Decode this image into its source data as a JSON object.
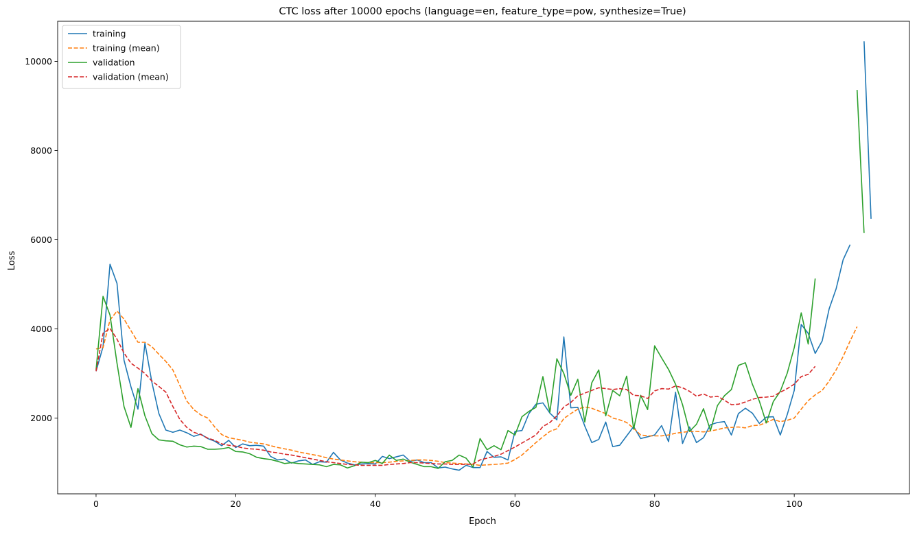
{
  "chart_data": {
    "type": "line",
    "title": "CTC loss after 10000 epochs (language=en, feature_type=pow, synthesize=True)",
    "xlabel": "Epoch",
    "ylabel": "Loss",
    "xlim": [
      -5.5,
      116.5
    ],
    "ylim": [
      300,
      10900
    ],
    "xticks": [
      0,
      20,
      40,
      60,
      80,
      100
    ],
    "yticks": [
      2000,
      4000,
      6000,
      8000,
      10000
    ],
    "grid": false,
    "legend_position": "top-left",
    "series": [
      {
        "name": "training",
        "color": "#1f77b4",
        "dash": "solid",
        "segments": [
          {
            "x0": 0,
            "values": [
              3050,
              3600,
              5450,
              5020,
              3300,
              2700,
              2200,
              3680,
              2800,
              2100,
              1730,
              1680,
              1730,
              1670,
              1590,
              1640,
              1540,
              1480,
              1380,
              1500,
              1340,
              1420,
              1380,
              1390,
              1370,
              1140,
              1060,
              1080,
              990,
              1040,
              1060,
              960,
              1020,
              1010,
              1230,
              1060,
              990,
              950,
              970,
              980,
              970,
              1140,
              1090,
              1130,
              1170,
              1030,
              1060,
              1000,
              1000,
              880,
              900,
              860,
              830,
              940,
              890,
              890,
              1250,
              1120,
              1130,
              1060,
              1700,
              1720,
              2100,
              2310,
              2340,
              2110,
              1960,
              3820,
              2230,
              2240,
              1820,
              1450,
              1520,
              1910,
              1360,
              1390,
              1600,
              1810,
              1540,
              1580,
              1620,
              1830,
              1470,
              2580,
              1430,
              1800,
              1450,
              1560,
              1850,
              1900,
              1920,
              1620,
              2100,
              2220,
              2110,
              1880,
              2020,
              2030,
              1620,
              2080,
              2620,
              4100,
              3900,
              3450,
              3730,
              4450,
              4900,
              5550,
              5890
            ]
          },
          {
            "x0": 110,
            "values": [
              10450,
              6470
            ]
          }
        ]
      },
      {
        "name": "training (mean)",
        "color": "#ff7f0e",
        "dash": "dashed",
        "segments": [
          {
            "x0": 0,
            "values": [
              3550,
              3580,
              4200,
              4400,
              4220,
              3960,
              3700,
              3700,
              3600,
              3430,
              3270,
              3080,
              2730,
              2380,
              2190,
              2070,
              2000,
              1800,
              1630,
              1560,
              1530,
              1500,
              1460,
              1440,
              1420,
              1380,
              1340,
              1310,
              1280,
              1240,
              1210,
              1180,
              1150,
              1110,
              1080,
              1060,
              1040,
              1020,
              1010,
              1000,
              1000,
              1000,
              1010,
              1030,
              1040,
              1050,
              1060,
              1060,
              1050,
              1030,
              1000,
              990,
              980,
              970,
              960,
              940,
              950,
              960,
              970,
              990,
              1070,
              1170,
              1310,
              1450,
              1580,
              1700,
              1760,
              1990,
              2100,
              2200,
              2250,
              2220,
              2160,
              2100,
              2000,
              1960,
              1900,
              1770,
              1620,
              1600,
              1600,
              1600,
              1620,
              1660,
              1680,
              1700,
              1700,
              1690,
              1710,
              1740,
              1780,
              1790,
              1800,
              1780,
              1830,
              1840,
              1900,
              1970,
              1920,
              1950,
              2000,
              2200,
              2390,
              2520,
              2620,
              2830,
              3080,
              3380,
              3730,
              4050
            ]
          }
        ]
      },
      {
        "name": "validation",
        "color": "#2ca02c",
        "dash": "solid",
        "segments": [
          {
            "x0": 0,
            "values": [
              3080,
              4730,
              4310,
              3230,
              2260,
              1790,
              2660,
              2050,
              1650,
              1510,
              1490,
              1480,
              1400,
              1350,
              1370,
              1360,
              1300,
              1300,
              1310,
              1340,
              1250,
              1240,
              1200,
              1120,
              1090,
              1070,
              1030,
              980,
              1000,
              980,
              970,
              960,
              950,
              910,
              960,
              950,
              880,
              930,
              1010,
              1000,
              1050,
              980,
              1170,
              1050,
              1080,
              1010,
              960,
              910,
              910,
              870,
              1020,
              1050,
              1170,
              1100,
              900,
              1540,
              1290,
              1380,
              1290,
              1720,
              1620,
              2030,
              2150,
              2240,
              2930,
              2130,
              3330,
              3000,
              2510,
              2870,
              1910,
              2790,
              3080,
              2050,
              2620,
              2500,
              2940,
              1750,
              2510,
              2190,
              3620,
              3350,
              3090,
              2760,
              2300,
              1700,
              1860,
              2210,
              1720,
              2280,
              2500,
              2640,
              3180,
              3240,
              2760,
              2380,
              1890,
              2370,
              2600,
              3010,
              3580,
              4360,
              3660,
              5130
            ]
          },
          {
            "x0": 109,
            "values": [
              9360,
              6150
            ]
          }
        ]
      },
      {
        "name": "validation (mean)",
        "color": "#d62728",
        "dash": "dashed",
        "segments": [
          {
            "x0": 0,
            "values": [
              3050,
              3900,
              4010,
              3770,
              3460,
              3230,
              3120,
              3000,
              2830,
              2710,
              2580,
              2260,
              1970,
              1790,
              1680,
              1630,
              1550,
              1500,
              1420,
              1390,
              1370,
              1330,
              1310,
              1300,
              1280,
              1240,
              1220,
              1190,
              1170,
              1140,
              1110,
              1080,
              1050,
              1020,
              1000,
              980,
              960,
              950,
              940,
              940,
              940,
              940,
              960,
              970,
              980,
              1000,
              1000,
              990,
              980,
              970,
              970,
              960,
              960,
              960,
              970,
              1060,
              1100,
              1140,
              1190,
              1270,
              1350,
              1440,
              1530,
              1620,
              1810,
              1900,
              2050,
              2250,
              2350,
              2500,
              2560,
              2620,
              2680,
              2660,
              2640,
              2660,
              2640,
              2510,
              2500,
              2440,
              2610,
              2660,
              2650,
              2720,
              2680,
              2600,
              2490,
              2540,
              2470,
              2490,
              2400,
              2300,
              2310,
              2360,
              2420,
              2460,
              2470,
              2490,
              2580,
              2660,
              2760,
              2930,
              2980,
              3160
            ]
          }
        ]
      }
    ]
  }
}
